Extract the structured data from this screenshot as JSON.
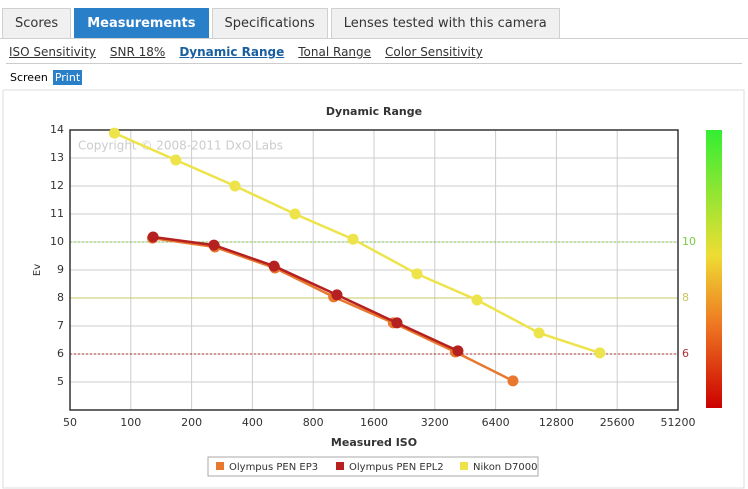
{
  "tabs": [
    "Scores",
    "Measurements",
    "Specifications",
    "Lenses tested with this camera"
  ],
  "subtabs": [
    "ISO Sensitivity",
    "SNR 18%",
    "Dynamic Range",
    "Tonal Range",
    "Color Sensitivity"
  ],
  "modes": [
    "Screen",
    "Print"
  ],
  "chart_data": {
    "type": "line",
    "title": "Dynamic Range",
    "x_label": "Measured ISO",
    "y_label": "Ev",
    "annotation": "Copyright © 2008-2011 DxO Labs",
    "xscale": "log",
    "xlim": [
      50,
      51200
    ],
    "xticks": [
      50,
      100,
      200,
      400,
      800,
      1600,
      3200,
      6400,
      12800,
      25600,
      51200
    ],
    "ylim": [
      4,
      14
    ],
    "yticks": [
      5,
      6,
      7,
      8,
      9,
      10,
      11,
      12,
      13,
      14
    ],
    "grid": true,
    "reference_lines": [
      {
        "value": 10,
        "color": "#77cc44",
        "dashed": true
      },
      {
        "value": 8,
        "color": "#c8c860",
        "dashed": false
      },
      {
        "value": 6,
        "color": "#b03030",
        "dashed": true
      }
    ],
    "series": [
      {
        "name": "Olympus PEN EP3",
        "color": "#e8782e",
        "x": [
          128,
          261,
          517,
          1010,
          1995,
          4045,
          7800
        ],
        "values": [
          10.14,
          9.82,
          9.07,
          8.04,
          7.11,
          6.07,
          5.04
        ]
      },
      {
        "name": "Olympus PEN EPL2",
        "color": "#b52020",
        "x": [
          129,
          258,
          512,
          1049,
          2080,
          4166
        ],
        "values": [
          10.18,
          9.89,
          9.14,
          8.11,
          7.11,
          6.11
        ]
      },
      {
        "name": "Nikon D7000",
        "color": "#ede34b",
        "x": [
          83,
          167,
          328,
          650,
          1260,
          2612,
          5177,
          10500,
          21000
        ],
        "values": [
          13.89,
          12.93,
          12.0,
          11.0,
          10.1,
          8.86,
          7.93,
          6.75,
          6.04
        ]
      }
    ]
  }
}
